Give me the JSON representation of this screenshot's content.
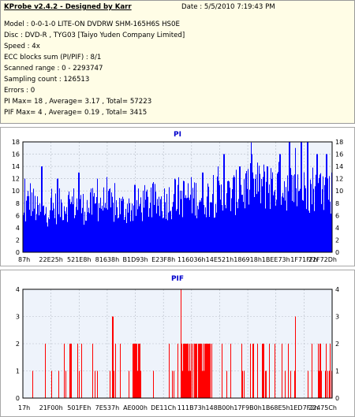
{
  "info": {
    "title": "KProbe v2.4.2 - Designed by Karr",
    "date": "Date : 5/5/2010 7:19:43 PM",
    "lines": [
      "Model : 0-0-1-0 LITE-ON DVDRW SHM-165H6S HS0E",
      "Disc : DVD-R , TYG03 [Taiyo Yuden Company Limited]",
      "Speed : 4x",
      "ECC blocks sum (PI/PIF) : 8/1",
      "Scanned range : 0 - 2293747",
      "Sampling count : 126513",
      "Errors : 0",
      "PI Max= 18 , Average= 3.17 , Total= 57223",
      "PIF Max= 4 , Average= 0.19 , Total= 3415"
    ]
  },
  "colors": {
    "pi": "#0000ff",
    "pif": "#ff0000",
    "plot_bg": "#eef3fb",
    "title": "#0000cc"
  },
  "chart_data": [
    {
      "type": "bar",
      "title": "PI",
      "ylim": [
        0,
        18
      ],
      "yticks": [
        0,
        2,
        4,
        6,
        8,
        10,
        12,
        14,
        16,
        18
      ],
      "xticks": [
        "87h",
        "22E25h",
        "521E8h",
        "81638h",
        "B1D93h",
        "E23F8h",
        "116036h",
        "14E521h",
        "186918h",
        "1BEE73h",
        "1F71FFh",
        "22F72Dh"
      ],
      "grid": true,
      "series": [
        {
          "summary": {
            "max": 18,
            "average": 3.17,
            "total": 57223
          },
          "profile": [
            [
              0,
              6
            ],
            [
              0.02,
              10
            ],
            [
              0.05,
              7
            ],
            [
              0.1,
              8
            ],
            [
              0.15,
              9
            ],
            [
              0.2,
              8
            ],
            [
              0.25,
              9
            ],
            [
              0.3,
              8
            ],
            [
              0.35,
              8
            ],
            [
              0.4,
              9
            ],
            [
              0.45,
              9
            ],
            [
              0.5,
              10
            ],
            [
              0.55,
              10
            ],
            [
              0.6,
              10
            ],
            [
              0.65,
              10
            ],
            [
              0.7,
              11
            ],
            [
              0.75,
              12
            ],
            [
              0.8,
              12
            ],
            [
              0.85,
              12
            ],
            [
              0.9,
              11
            ],
            [
              0.95,
              12
            ],
            [
              1.0,
              11
            ]
          ],
          "spikes": [
            [
              0.005,
              12
            ],
            [
              0.06,
              14
            ],
            [
              0.11,
              12
            ],
            [
              0.18,
              13
            ],
            [
              0.24,
              12
            ],
            [
              0.36,
              11
            ],
            [
              0.49,
              12
            ],
            [
              0.58,
              13
            ],
            [
              0.63,
              14
            ],
            [
              0.65,
              16
            ],
            [
              0.7,
              14
            ],
            [
              0.74,
              16
            ],
            [
              0.79,
              14
            ],
            [
              0.83,
              16
            ],
            [
              0.86,
              18
            ],
            [
              0.88,
              17
            ],
            [
              0.9,
              18
            ],
            [
              0.92,
              18
            ],
            [
              0.95,
              16
            ],
            [
              0.98,
              16
            ]
          ]
        }
      ]
    },
    {
      "type": "bar",
      "title": "PIF",
      "ylim": [
        0,
        4
      ],
      "yticks": [
        0,
        1,
        2,
        3,
        4
      ],
      "xticks": [
        "17h",
        "21F00h",
        "501FEh",
        "7E537h",
        "AE000h",
        "DE11Ch",
        "111B73h",
        "148B00h",
        "17F9B0h",
        "1B68E5h",
        "1ED7F2h",
        "22475Ch"
      ],
      "grid": true,
      "series": [
        {
          "summary": {
            "max": 4,
            "average": 0.19,
            "total": 3415
          },
          "dense_ranges": [
            [
              0.35,
              0.38
            ],
            [
              0.51,
              0.55
            ],
            [
              0.56,
              0.61
            ]
          ],
          "spikes": [
            [
              0.29,
              3
            ],
            [
              0.51,
              4
            ],
            [
              0.88,
              3
            ]
          ]
        }
      ]
    }
  ]
}
